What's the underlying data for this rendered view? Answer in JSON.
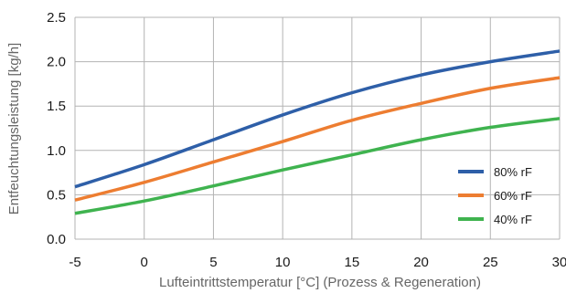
{
  "chart_data": {
    "type": "line",
    "xlabel": "Lufteintrittstemperatur [°C] (Prozess & Regeneration)",
    "ylabel": "Entfeuchtungsleistung [kg/h]",
    "xlim": [
      -5,
      30
    ],
    "ylim": [
      0,
      2.5
    ],
    "xticks": [
      -5,
      0,
      5,
      10,
      15,
      20,
      25,
      30
    ],
    "yticks": [
      0.0,
      0.5,
      1.0,
      1.5,
      2.0,
      2.5
    ],
    "xtick_labels": [
      "-5",
      "0",
      "5",
      "10",
      "15",
      "20",
      "25",
      "30"
    ],
    "ytick_labels": [
      "0.0",
      "0.5",
      "1.0",
      "1.5",
      "2.0",
      "2.5"
    ],
    "grid": true,
    "legend_position": "bottom-right",
    "x": [
      -5,
      0,
      5,
      10,
      15,
      20,
      25,
      30
    ],
    "series": [
      {
        "name": "80% rF",
        "color": "#2e5fa8",
        "values": [
          0.59,
          0.84,
          1.12,
          1.4,
          1.65,
          1.85,
          2.0,
          2.12
        ]
      },
      {
        "name": "60% rF",
        "color": "#ed7d31",
        "values": [
          0.44,
          0.64,
          0.87,
          1.1,
          1.34,
          1.53,
          1.7,
          1.82
        ]
      },
      {
        "name": "40% rF",
        "color": "#3fb34f",
        "values": [
          0.29,
          0.43,
          0.6,
          0.78,
          0.95,
          1.12,
          1.26,
          1.36
        ]
      }
    ]
  }
}
